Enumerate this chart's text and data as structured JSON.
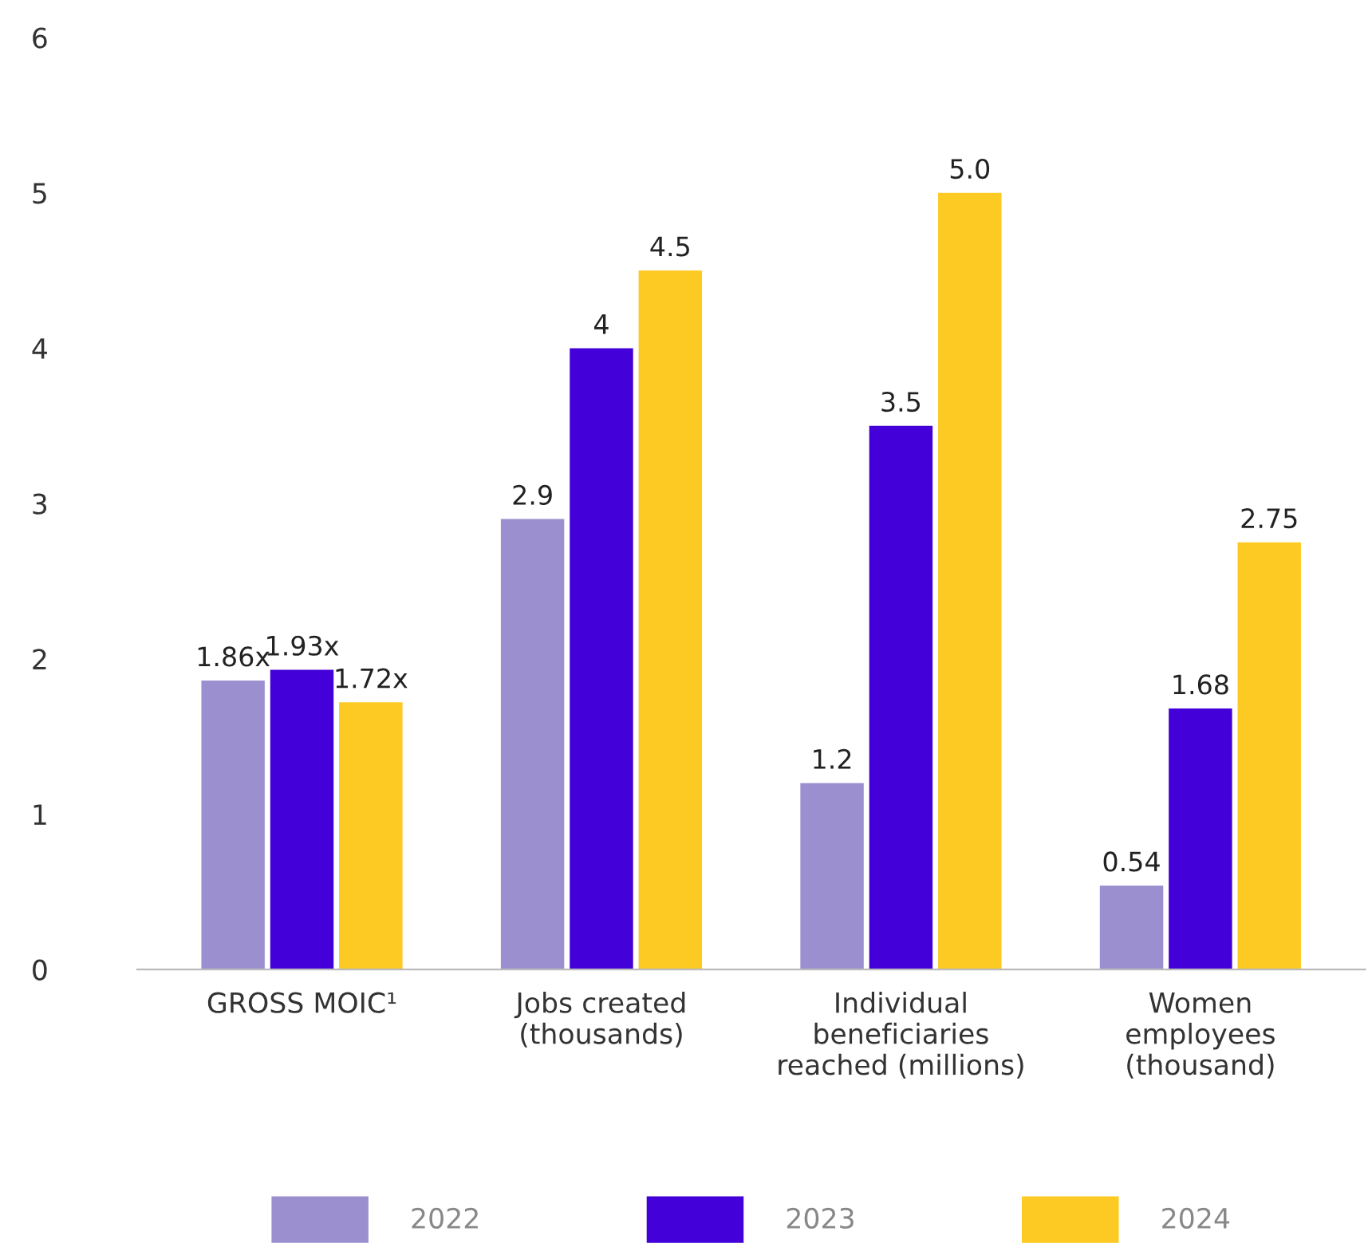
{
  "chart_data": {
    "type": "bar",
    "categories": [
      "GROSS MOIC¹",
      "Jobs created\n(thousands)",
      "Individual\nbeneficiaries\nreached (millions)",
      "Women\nemployees\n(thousand)"
    ],
    "series": [
      {
        "name": "2022",
        "color": "#9b8fcf",
        "values": [
          1.86,
          2.9,
          1.2,
          0.54
        ],
        "value_labels": [
          "1.86x",
          "2.9",
          "1.2",
          "0.54"
        ]
      },
      {
        "name": "2023",
        "color": "#4300d8",
        "values": [
          1.93,
          4,
          3.5,
          1.68
        ],
        "value_labels": [
          "1.93x",
          "4",
          "3.5",
          "1.68"
        ]
      },
      {
        "name": "2024",
        "color": "#fdc923",
        "values": [
          1.72,
          4.5,
          5.0,
          2.75
        ],
        "value_labels": [
          "1.72x",
          "4.5",
          "5.0",
          "2.75"
        ]
      }
    ],
    "ylim": [
      0,
      6
    ],
    "yticks": [
      0,
      1,
      2,
      3,
      4,
      5,
      6
    ],
    "grid": false,
    "legend": "bottom"
  }
}
